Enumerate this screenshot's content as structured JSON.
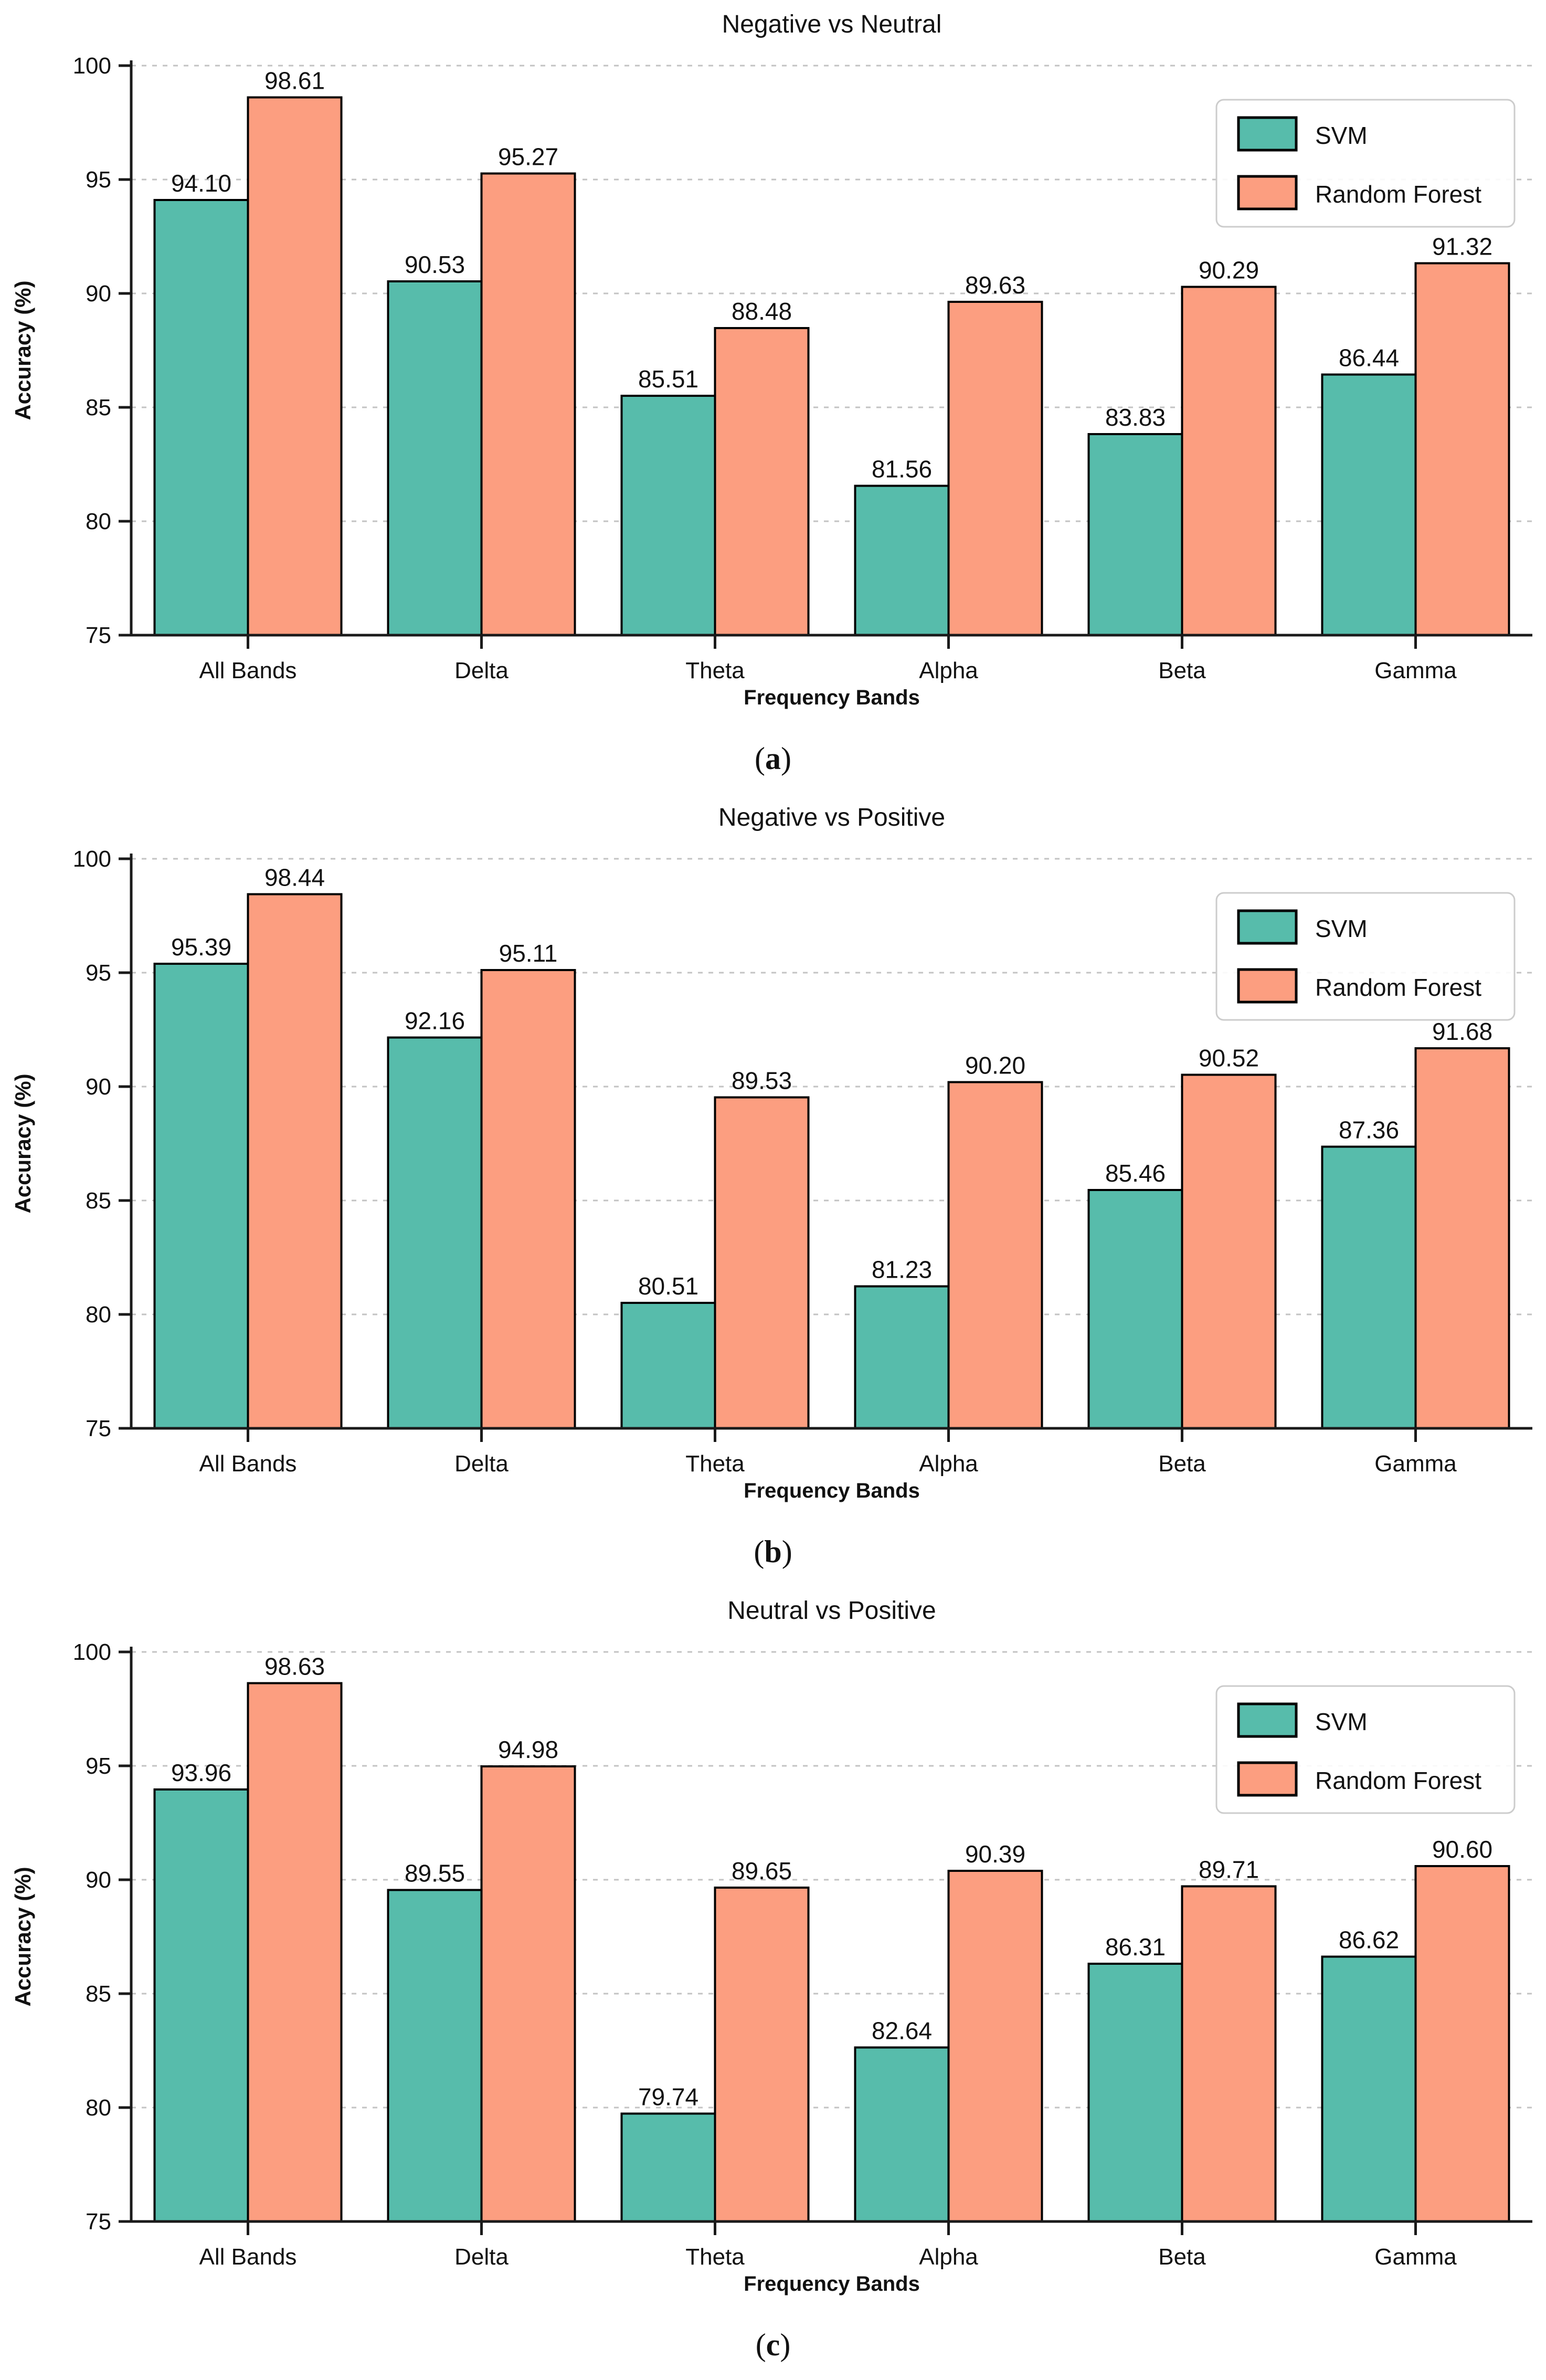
{
  "ui": {
    "open_paren": "(",
    "close_paren": ")"
  },
  "figure": {
    "background": "#ffffff",
    "text_color": "#111111",
    "grid_color": "#c3c3c3",
    "axis_color": "#1a1a1a",
    "legend_border_color": "#cccccc",
    "bar_edge_color": "#000000",
    "svm_color": "#57BCAB",
    "random_forest_color": "#FC9E80"
  },
  "chart_data": [
    {
      "type": "bar",
      "title": "Negative vs Neutral",
      "caption_letter": "a",
      "xlabel": "Frequency Bands",
      "ylabel": "Accuracy (%)",
      "ylim": [
        75,
        100
      ],
      "yticks": [
        75,
        80,
        85,
        90,
        95,
        100
      ],
      "grid": "horizontal-dashed",
      "legend_position": "upper-right",
      "categories": [
        "All Bands",
        "Delta",
        "Theta",
        "Alpha",
        "Beta",
        "Gamma"
      ],
      "series": [
        {
          "name": "SVM",
          "color": "#57BCAB",
          "values": [
            94.1,
            90.53,
            85.51,
            81.56,
            83.83,
            86.44
          ]
        },
        {
          "name": "Random Forest",
          "color": "#FC9E80",
          "values": [
            98.61,
            95.27,
            88.48,
            89.63,
            90.29,
            91.32
          ]
        }
      ],
      "value_label_decimals": 2
    },
    {
      "type": "bar",
      "title": "Negative vs Positive",
      "caption_letter": "b",
      "xlabel": "Frequency Bands",
      "ylabel": "Accuracy (%)",
      "ylim": [
        75,
        100
      ],
      "yticks": [
        75,
        80,
        85,
        90,
        95,
        100
      ],
      "grid": "horizontal-dashed",
      "legend_position": "upper-right",
      "categories": [
        "All Bands",
        "Delta",
        "Theta",
        "Alpha",
        "Beta",
        "Gamma"
      ],
      "series": [
        {
          "name": "SVM",
          "color": "#57BCAB",
          "values": [
            95.39,
            92.16,
            80.51,
            81.23,
            85.46,
            87.36
          ]
        },
        {
          "name": "Random Forest",
          "color": "#FC9E80",
          "values": [
            98.44,
            95.11,
            89.53,
            90.2,
            90.52,
            91.68
          ]
        }
      ],
      "value_label_decimals": 2
    },
    {
      "type": "bar",
      "title": "Neutral vs Positive",
      "caption_letter": "c",
      "xlabel": "Frequency Bands",
      "ylabel": "Accuracy (%)",
      "ylim": [
        75,
        100
      ],
      "yticks": [
        75,
        80,
        85,
        90,
        95,
        100
      ],
      "grid": "horizontal-dashed",
      "legend_position": "upper-right",
      "categories": [
        "All Bands",
        "Delta",
        "Theta",
        "Alpha",
        "Beta",
        "Gamma"
      ],
      "series": [
        {
          "name": "SVM",
          "color": "#57BCAB",
          "values": [
            93.96,
            89.55,
            79.74,
            82.64,
            86.31,
            86.62
          ]
        },
        {
          "name": "Random Forest",
          "color": "#FC9E80",
          "values": [
            98.63,
            94.98,
            89.65,
            90.39,
            89.71,
            90.6
          ]
        }
      ],
      "value_label_decimals": 2
    }
  ]
}
